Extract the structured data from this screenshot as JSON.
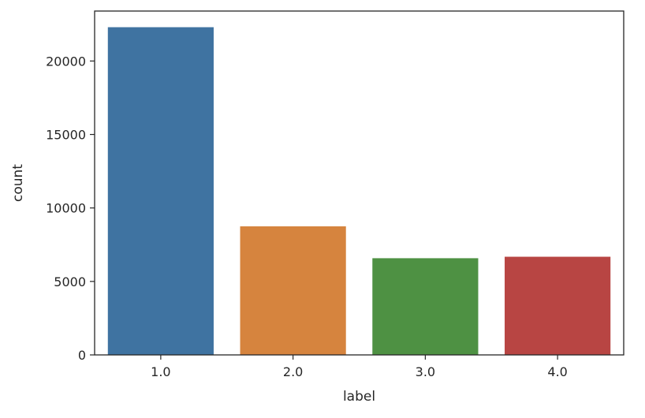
{
  "chart_data": {
    "type": "bar",
    "title": "",
    "xlabel": "label",
    "ylabel": "count",
    "categories": [
      "1.0",
      "2.0",
      "3.0",
      "4.0"
    ],
    "values": [
      22300,
      8750,
      6580,
      6680
    ],
    "colors": [
      "#3f73a1",
      "#d6843e",
      "#4e9143",
      "#b84543"
    ],
    "ylim": [
      0,
      23400
    ],
    "yticks": [
      0,
      5000,
      10000,
      15000,
      20000
    ],
    "ytick_labels": [
      "0",
      "5000",
      "10000",
      "15000",
      "20000"
    ],
    "grid": false,
    "legend": "none"
  }
}
